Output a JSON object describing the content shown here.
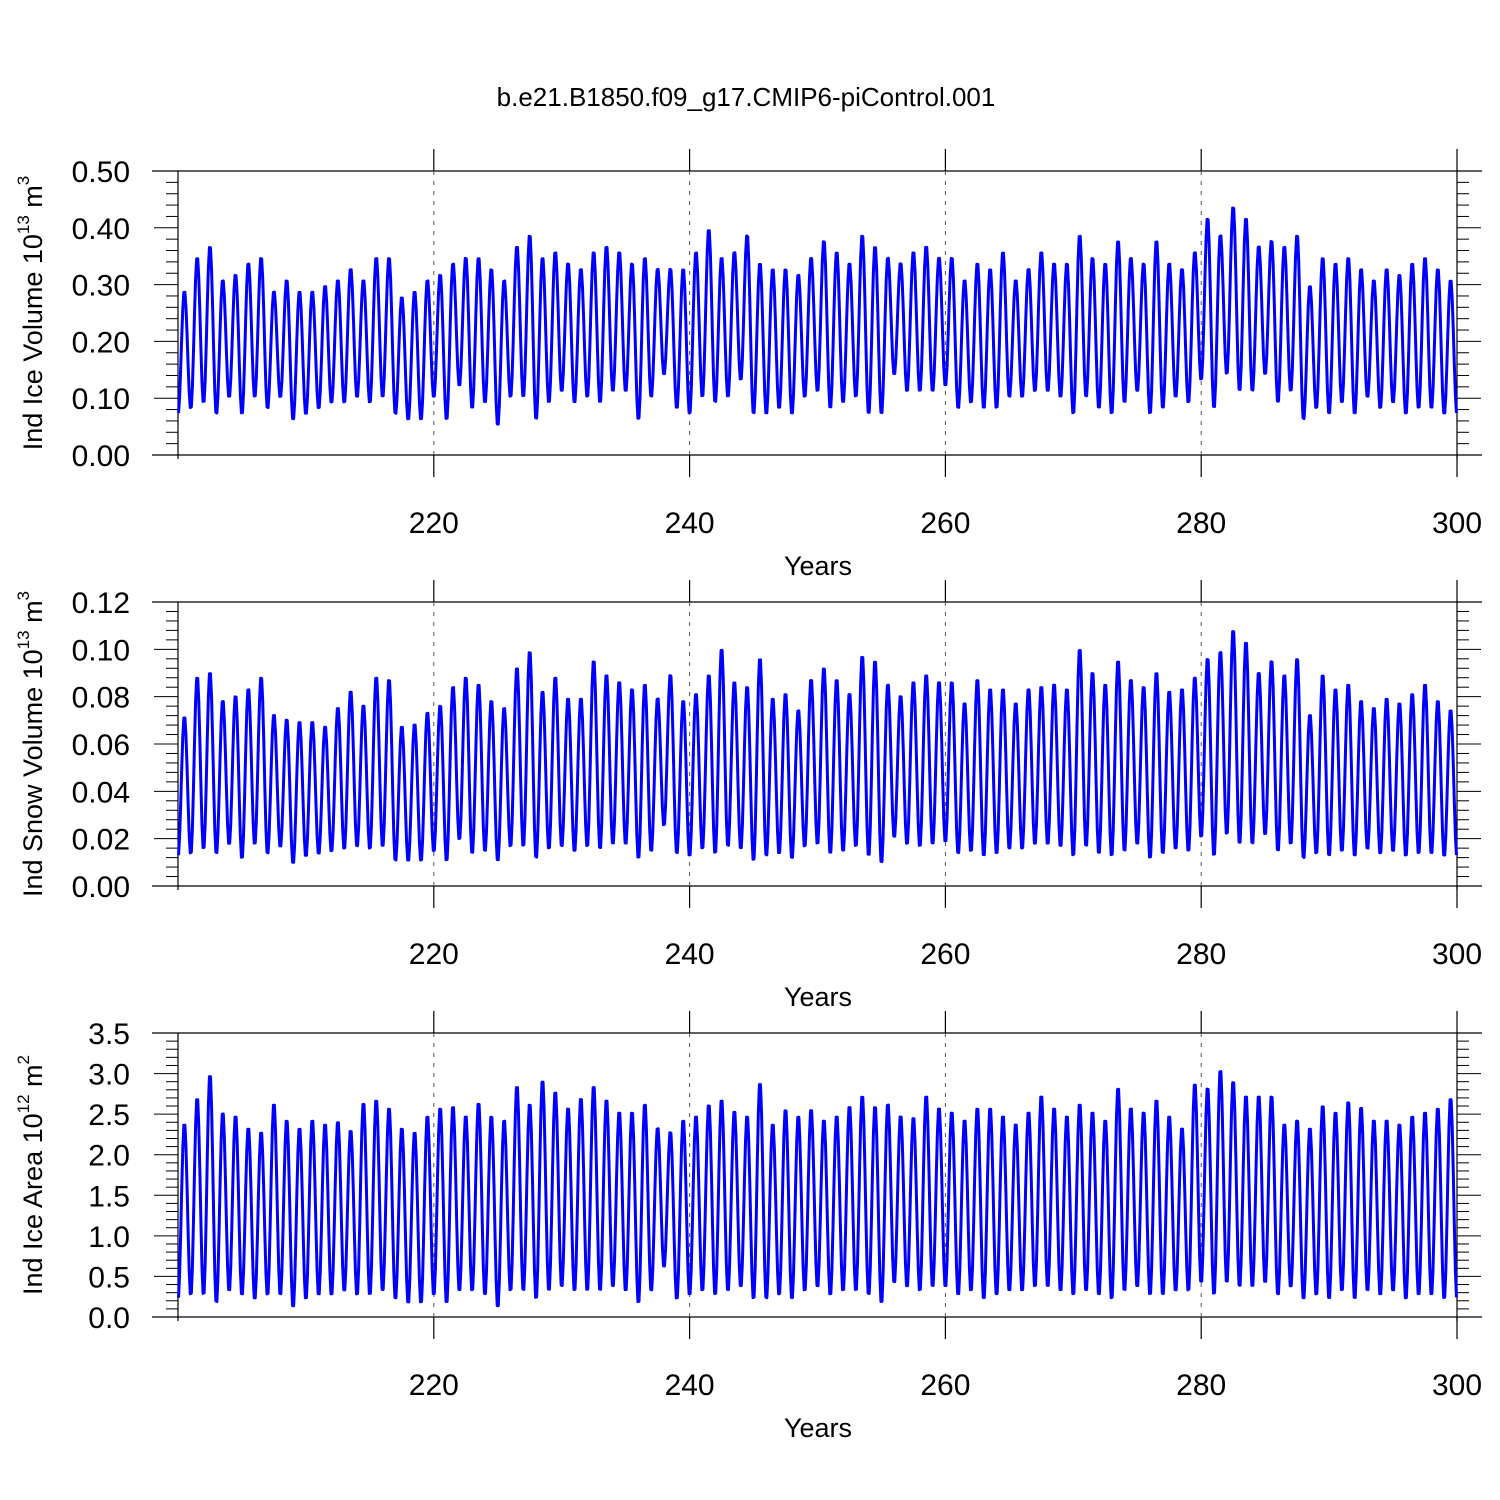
{
  "chart_data": {
    "title": "b.e21.B1850.f09_g17.CMIP6-piControl.001",
    "type": "line",
    "series_color": "#0000ff",
    "panels": [
      {
        "id": "ice-volume",
        "ylabel": {
          "prefix": "Ind Ice Volume 10",
          "exp": "13",
          "unit": " m",
          "unit_exp": "3"
        },
        "xlabel": "Years",
        "xlim": [
          200,
          300
        ],
        "ylim": [
          0,
          0.5
        ],
        "yticks": [
          "0.00",
          "0.10",
          "0.20",
          "0.30",
          "0.40",
          "0.50"
        ],
        "yticks_values": [
          0,
          0.1,
          0.2,
          0.3,
          0.4,
          0.5
        ],
        "xticks": [
          "220",
          "240",
          "260",
          "280",
          "300"
        ],
        "xticks_values": [
          220,
          240,
          260,
          280,
          300
        ],
        "grid_x": [
          220,
          240,
          260,
          280
        ],
        "year_start": 200,
        "peaks": [
          0.29,
          0.35,
          0.37,
          0.31,
          0.32,
          0.34,
          0.35,
          0.29,
          0.31,
          0.29,
          0.29,
          0.3,
          0.31,
          0.33,
          0.31,
          0.35,
          0.35,
          0.28,
          0.29,
          0.31,
          0.32,
          0.34,
          0.35,
          0.35,
          0.33,
          0.31,
          0.37,
          0.39,
          0.35,
          0.36,
          0.34,
          0.33,
          0.36,
          0.37,
          0.36,
          0.34,
          0.35,
          0.33,
          0.33,
          0.33,
          0.36,
          0.4,
          0.35,
          0.36,
          0.39,
          0.34,
          0.33,
          0.33,
          0.32,
          0.35,
          0.38,
          0.36,
          0.34,
          0.39,
          0.37,
          0.35,
          0.34,
          0.36,
          0.37,
          0.35,
          0.35,
          0.31,
          0.34,
          0.33,
          0.36,
          0.31,
          0.33,
          0.36,
          0.34,
          0.34,
          0.39,
          0.35,
          0.34,
          0.38,
          0.35,
          0.34,
          0.38,
          0.34,
          0.33,
          0.36,
          0.42,
          0.39,
          0.44,
          0.42,
          0.37,
          0.38,
          0.37,
          0.39,
          0.3,
          0.35,
          0.34,
          0.35,
          0.33,
          0.31,
          0.33,
          0.32,
          0.34,
          0.35,
          0.33,
          0.31
        ],
        "troughs": [
          0.07,
          0.08,
          0.09,
          0.07,
          0.1,
          0.07,
          0.1,
          0.08,
          0.1,
          0.06,
          0.07,
          0.08,
          0.09,
          0.09,
          0.1,
          0.09,
          0.1,
          0.07,
          0.06,
          0.06,
          0.1,
          0.06,
          0.12,
          0.08,
          0.09,
          0.05,
          0.1,
          0.1,
          0.06,
          0.09,
          0.11,
          0.09,
          0.1,
          0.09,
          0.11,
          0.11,
          0.06,
          0.1,
          0.14,
          0.08,
          0.07,
          0.1,
          0.09,
          0.1,
          0.13,
          0.07,
          0.07,
          0.08,
          0.07,
          0.1,
          0.11,
          0.08,
          0.09,
          0.1,
          0.07,
          0.07,
          0.14,
          0.11,
          0.11,
          0.11,
          0.12,
          0.08,
          0.09,
          0.08,
          0.08,
          0.1,
          0.1,
          0.11,
          0.11,
          0.1,
          0.07,
          0.1,
          0.08,
          0.07,
          0.09,
          0.11,
          0.07,
          0.08,
          0.1,
          0.09,
          0.13,
          0.08,
          0.14,
          0.11,
          0.11,
          0.14,
          0.09,
          0.11,
          0.06,
          0.08,
          0.07,
          0.09,
          0.07,
          0.1,
          0.08,
          0.09,
          0.07,
          0.08,
          0.08,
          0.07
        ]
      },
      {
        "id": "snow-volume",
        "ylabel": {
          "prefix": "Ind Snow Volume 10",
          "exp": "13",
          "unit": " m",
          "unit_exp": "3"
        },
        "xlabel": "Years",
        "xlim": [
          200,
          300
        ],
        "ylim": [
          0,
          0.12
        ],
        "yticks": [
          "0.00",
          "0.02",
          "0.04",
          "0.06",
          "0.08",
          "0.10",
          "0.12"
        ],
        "yticks_values": [
          0,
          0.02,
          0.04,
          0.06,
          0.08,
          0.1,
          0.12
        ],
        "xticks": [
          "220",
          "240",
          "260",
          "280",
          "300"
        ],
        "xticks_values": [
          220,
          240,
          260,
          280,
          300
        ],
        "grid_x": [
          220,
          240,
          260,
          280
        ],
        "year_start": 200,
        "peaks": [
          0.072,
          0.089,
          0.091,
          0.079,
          0.081,
          0.084,
          0.089,
          0.073,
          0.071,
          0.07,
          0.07,
          0.068,
          0.076,
          0.083,
          0.077,
          0.089,
          0.088,
          0.068,
          0.069,
          0.074,
          0.077,
          0.085,
          0.089,
          0.086,
          0.079,
          0.076,
          0.093,
          0.1,
          0.083,
          0.089,
          0.08,
          0.08,
          0.096,
          0.09,
          0.087,
          0.084,
          0.086,
          0.08,
          0.09,
          0.079,
          0.082,
          0.09,
          0.101,
          0.087,
          0.085,
          0.097,
          0.08,
          0.082,
          0.075,
          0.088,
          0.093,
          0.088,
          0.082,
          0.098,
          0.096,
          0.086,
          0.081,
          0.087,
          0.09,
          0.087,
          0.087,
          0.078,
          0.088,
          0.084,
          0.084,
          0.078,
          0.084,
          0.085,
          0.086,
          0.084,
          0.101,
          0.091,
          0.086,
          0.096,
          0.088,
          0.085,
          0.091,
          0.083,
          0.084,
          0.089,
          0.097,
          0.1,
          0.109,
          0.104,
          0.091,
          0.096,
          0.09,
          0.097,
          0.073,
          0.09,
          0.084,
          0.086,
          0.079,
          0.076,
          0.08,
          0.078,
          0.082,
          0.086,
          0.079,
          0.075
        ],
        "troughs": [
          0.012,
          0.013,
          0.015,
          0.013,
          0.017,
          0.011,
          0.017,
          0.013,
          0.016,
          0.009,
          0.012,
          0.013,
          0.014,
          0.015,
          0.016,
          0.015,
          0.016,
          0.01,
          0.01,
          0.01,
          0.014,
          0.01,
          0.019,
          0.013,
          0.014,
          0.01,
          0.016,
          0.016,
          0.011,
          0.015,
          0.016,
          0.014,
          0.016,
          0.015,
          0.017,
          0.017,
          0.011,
          0.014,
          0.025,
          0.013,
          0.012,
          0.015,
          0.013,
          0.016,
          0.015,
          0.01,
          0.012,
          0.013,
          0.011,
          0.016,
          0.017,
          0.013,
          0.014,
          0.016,
          0.012,
          0.009,
          0.02,
          0.017,
          0.016,
          0.017,
          0.018,
          0.013,
          0.014,
          0.012,
          0.013,
          0.015,
          0.015,
          0.017,
          0.017,
          0.016,
          0.012,
          0.016,
          0.013,
          0.012,
          0.014,
          0.017,
          0.011,
          0.013,
          0.015,
          0.014,
          0.02,
          0.012,
          0.021,
          0.017,
          0.017,
          0.021,
          0.014,
          0.017,
          0.011,
          0.013,
          0.012,
          0.014,
          0.012,
          0.015,
          0.013,
          0.014,
          0.012,
          0.013,
          0.013,
          0.012
        ]
      },
      {
        "id": "ice-area",
        "ylabel": {
          "prefix": "Ind Ice Area 10",
          "exp": "12",
          "unit": " m",
          "unit_exp": "2"
        },
        "xlabel": "Years",
        "xlim": [
          200,
          300
        ],
        "ylim": [
          0,
          3.5
        ],
        "yticks": [
          "0.0",
          "0.5",
          "1.0",
          "1.5",
          "2.0",
          "2.5",
          "3.0",
          "3.5"
        ],
        "yticks_values": [
          0,
          0.5,
          1.0,
          1.5,
          2.0,
          2.5,
          3.0,
          3.5
        ],
        "xticks": [
          "220",
          "240",
          "260",
          "280",
          "300"
        ],
        "xticks_values": [
          220,
          240,
          260,
          280,
          300
        ],
        "grid_x": [
          220,
          240,
          260,
          280
        ],
        "year_start": 200,
        "peaks": [
          2.4,
          2.72,
          3.01,
          2.54,
          2.5,
          2.35,
          2.3,
          2.65,
          2.45,
          2.35,
          2.45,
          2.4,
          2.43,
          2.32,
          2.66,
          2.7,
          2.6,
          2.35,
          2.3,
          2.5,
          2.6,
          2.62,
          2.5,
          2.66,
          2.5,
          2.45,
          2.87,
          2.65,
          2.94,
          2.8,
          2.6,
          2.72,
          2.87,
          2.7,
          2.55,
          2.55,
          2.65,
          2.35,
          2.3,
          2.45,
          2.5,
          2.64,
          2.7,
          2.56,
          2.5,
          2.91,
          2.4,
          2.58,
          2.5,
          2.58,
          2.45,
          2.5,
          2.62,
          2.75,
          2.62,
          2.65,
          2.5,
          2.48,
          2.75,
          2.6,
          2.55,
          2.45,
          2.6,
          2.6,
          2.5,
          2.4,
          2.55,
          2.75,
          2.6,
          2.5,
          2.65,
          2.55,
          2.45,
          2.85,
          2.6,
          2.55,
          2.7,
          2.5,
          2.35,
          2.9,
          2.85,
          3.07,
          2.93,
          2.75,
          2.75,
          2.75,
          2.4,
          2.45,
          2.35,
          2.63,
          2.55,
          2.68,
          2.61,
          2.45,
          2.45,
          2.4,
          2.5,
          2.55,
          2.6,
          2.72
        ],
        "troughs": [
          0.2,
          0.25,
          0.25,
          0.15,
          0.3,
          0.25,
          0.2,
          0.25,
          0.25,
          0.1,
          0.2,
          0.25,
          0.25,
          0.3,
          0.25,
          0.25,
          0.3,
          0.2,
          0.15,
          0.15,
          0.25,
          0.15,
          0.3,
          0.3,
          0.25,
          0.1,
          0.3,
          0.3,
          0.2,
          0.3,
          0.35,
          0.3,
          0.3,
          0.3,
          0.35,
          0.3,
          0.15,
          0.3,
          0.6,
          0.2,
          0.25,
          0.3,
          0.25,
          0.3,
          0.35,
          0.2,
          0.2,
          0.25,
          0.2,
          0.3,
          0.35,
          0.25,
          0.3,
          0.3,
          0.25,
          0.15,
          0.4,
          0.35,
          0.3,
          0.35,
          0.35,
          0.25,
          0.3,
          0.2,
          0.25,
          0.3,
          0.3,
          0.35,
          0.35,
          0.3,
          0.25,
          0.3,
          0.25,
          0.2,
          0.3,
          0.35,
          0.25,
          0.25,
          0.3,
          0.3,
          0.4,
          0.25,
          0.4,
          0.35,
          0.35,
          0.4,
          0.25,
          0.35,
          0.2,
          0.25,
          0.2,
          0.3,
          0.2,
          0.3,
          0.25,
          0.3,
          0.2,
          0.25,
          0.25,
          0.2
        ]
      }
    ]
  }
}
